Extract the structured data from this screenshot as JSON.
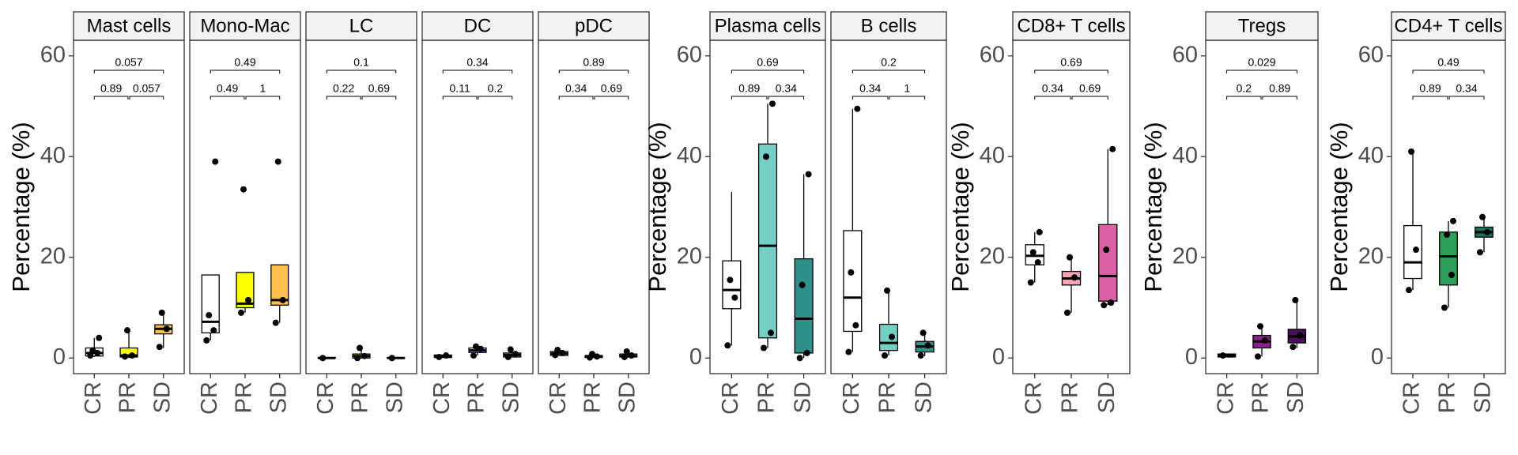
{
  "chart_data": {
    "type": "box",
    "ylabel": "Percentage (%)",
    "categories": [
      "CR",
      "PR",
      "SD"
    ],
    "ylim": [
      -3.1,
      63.1
    ],
    "yticks": [
      0,
      20,
      40,
      60
    ],
    "groups": [
      {
        "panels": [
          {
            "title": "Mast cells",
            "p_values": [
              0.89,
              0.057,
              0.057
            ],
            "boxes": [
              {
                "color": "#ffffff",
                "min": 0.2,
                "q1": 0.4,
                "median": 1,
                "q3": 2,
                "max": 4,
                "points": [
                  0.5,
                  1,
                  1.5,
                  4
                ]
              },
              {
                "color": "#ffff00",
                "min": 0,
                "q1": 0.2,
                "median": 0.5,
                "q3": 2,
                "max": 5.5,
                "points": [
                  0.3,
                  0.5,
                  5.5
                ]
              },
              {
                "color": "#ffc04d",
                "min": 2,
                "q1": 4.8,
                "median": 5.8,
                "q3": 6.6,
                "max": 9,
                "points": [
                  2.2,
                  5.8,
                  9
                ]
              }
            ]
          },
          {
            "title": "Mono-Mac",
            "p_values": [
              0.49,
              1,
              0.49
            ],
            "boxes": [
              {
                "color": "#ffffff",
                "min": 3.5,
                "q1": 5,
                "median": 7.2,
                "q3": 16.5,
                "max": 16.5,
                "points": [
                  3.5,
                  5.5,
                  8.5,
                  39
                ]
              },
              {
                "color": "#ffff00",
                "min": 9,
                "q1": 10,
                "median": 10.8,
                "q3": 17,
                "max": 17,
                "points": [
                  9,
                  11.5,
                  33.5
                ]
              },
              {
                "color": "#ffc04d",
                "min": 7,
                "q1": 10.5,
                "median": 11.5,
                "q3": 18.5,
                "max": 18.5,
                "points": [
                  7,
                  11.5,
                  39
                ]
              }
            ]
          },
          {
            "title": "LC",
            "p_values": [
              0.22,
              0.69,
              0.1
            ],
            "boxes": [
              {
                "color": "#ffffff",
                "min": 0,
                "q1": 0,
                "median": 0,
                "q3": 0.1,
                "max": 0.1,
                "points": [
                  0
                ]
              },
              {
                "color": "#ffff00",
                "min": 0,
                "q1": 0,
                "median": 0.4,
                "q3": 0.8,
                "max": 2,
                "points": [
                  0,
                  0.4,
                  2
                ]
              },
              {
                "color": "#ffc04d",
                "min": 0,
                "q1": 0,
                "median": 0,
                "q3": 0.1,
                "max": 0.1,
                "points": [
                  0
                ]
              }
            ]
          },
          {
            "title": "DC",
            "p_values": [
              0.11,
              0.2,
              0.34
            ],
            "boxes": [
              {
                "color": "#ffffff",
                "min": 0.1,
                "q1": 0.1,
                "median": 0.3,
                "q3": 0.6,
                "max": 0.6,
                "points": [
                  0.2,
                  0.5
                ]
              },
              {
                "color": "#ffff00",
                "min": 0.5,
                "q1": 1.1,
                "median": 1.5,
                "q3": 2,
                "max": 2.5,
                "points": [
                  0.5,
                  1.8,
                  2.3
                ]
              },
              {
                "color": "#ffc04d",
                "min": 0.2,
                "q1": 0.2,
                "median": 0.6,
                "q3": 1,
                "max": 1.7,
                "points": [
                  0.2,
                  0.8,
                  1.7
                ]
              }
            ]
          },
          {
            "title": "pDC",
            "p_values": [
              0.34,
              0.69,
              0.89
            ],
            "boxes": [
              {
                "color": "#ffffff",
                "min": 0.5,
                "q1": 0.5,
                "median": 0.9,
                "q3": 1.3,
                "max": 1.6,
                "points": [
                  0.6,
                  1,
                  1.6
                ]
              },
              {
                "color": "#ffff00",
                "min": 0.1,
                "q1": 0.1,
                "median": 0.3,
                "q3": 0.5,
                "max": 0.8,
                "points": [
                  0.1,
                  0.3,
                  0.8
                ]
              },
              {
                "color": "#ffc04d",
                "min": 0.2,
                "q1": 0.2,
                "median": 0.4,
                "q3": 0.8,
                "max": 1.3,
                "points": [
                  0.2,
                  0.5,
                  1.3
                ]
              }
            ]
          }
        ]
      },
      {
        "panels": [
          {
            "title": "Plasma cells",
            "p_values": [
              0.89,
              0.34,
              0.69
            ],
            "boxes": [
              {
                "color": "#ffffff",
                "min": 2.5,
                "q1": 9.8,
                "median": 13.5,
                "q3": 19.3,
                "max": 33,
                "points": [
                  2.5,
                  12,
                  15.5
                ]
              },
              {
                "color": "#76cfc5",
                "min": 2,
                "q1": 4,
                "median": 22.3,
                "q3": 42.5,
                "max": 50.5,
                "points": [
                  2,
                  5,
                  40,
                  50.5
                ]
              },
              {
                "color": "#2e9088",
                "min": 0,
                "q1": 1,
                "median": 7.8,
                "q3": 19.7,
                "max": 36.5,
                "points": [
                  0,
                  1,
                  14.5,
                  36.5
                ]
              }
            ]
          },
          {
            "title": "B cells",
            "p_values": [
              0.34,
              1,
              0.2
            ],
            "boxes": [
              {
                "color": "#ffffff",
                "min": 1.2,
                "q1": 5.3,
                "median": 12,
                "q3": 25.3,
                "max": 49.5,
                "points": [
                  1.2,
                  6.5,
                  17,
                  49.5
                ]
              },
              {
                "color": "#76cfc5",
                "min": 0.5,
                "q1": 1.5,
                "median": 3,
                "q3": 6.7,
                "max": 13.4,
                "points": [
                  0.5,
                  4.2,
                  13.4
                ]
              },
              {
                "color": "#2e9088",
                "min": 0.4,
                "q1": 1.2,
                "median": 2.3,
                "q3": 3.3,
                "max": 5,
                "points": [
                  0.5,
                  2.5,
                  5
                ]
              }
            ]
          }
        ]
      },
      {
        "panels": [
          {
            "title": "CD8+ T cells",
            "p_values": [
              0.34,
              0.69,
              0.69
            ],
            "boxes": [
              {
                "color": "#ffffff",
                "min": 15,
                "q1": 18.5,
                "median": 20.3,
                "q3": 22.5,
                "max": 25,
                "points": [
                  15,
                  19,
                  21,
                  25
                ]
              },
              {
                "color": "#f4a6b5",
                "min": 9,
                "q1": 14.5,
                "median": 15.8,
                "q3": 17.2,
                "max": 20,
                "points": [
                  9,
                  16,
                  20
                ]
              },
              {
                "color": "#dd5fa4",
                "min": 10.5,
                "q1": 11.3,
                "median": 16.3,
                "q3": 26.5,
                "max": 41.5,
                "points": [
                  10.5,
                  11,
                  21.5,
                  41.5
                ]
              }
            ]
          }
        ]
      },
      {
        "panels": [
          {
            "title": "Tregs",
            "p_values": [
              0.2,
              0.89,
              0.029
            ],
            "boxes": [
              {
                "color": "#ffffff",
                "min": 0.2,
                "q1": 0.2,
                "median": 0.5,
                "q3": 0.8,
                "max": 0.8,
                "points": [
                  0.5
                ]
              },
              {
                "color": "#8b1f8b",
                "min": 0.3,
                "q1": 2,
                "median": 3.3,
                "q3": 4.5,
                "max": 6.3,
                "points": [
                  0.3,
                  3.5,
                  6.3
                ]
              },
              {
                "color": "#4a0d5e",
                "min": 2,
                "q1": 3,
                "median": 4.3,
                "q3": 5.7,
                "max": 11.5,
                "points": [
                  2.2,
                  4.5,
                  11.5
                ]
              }
            ]
          }
        ]
      },
      {
        "panels": [
          {
            "title": "CD4+ T cells",
            "p_values": [
              0.89,
              0.34,
              0.49
            ],
            "boxes": [
              {
                "color": "#ffffff",
                "min": 13.5,
                "q1": 15.8,
                "median": 19,
                "q3": 26.3,
                "max": 41,
                "points": [
                  13.5,
                  21.5,
                  41
                ]
              },
              {
                "color": "#2e9e5a",
                "min": 10,
                "q1": 14.5,
                "median": 20.2,
                "q3": 25,
                "max": 27.2,
                "points": [
                  10,
                  16.5,
                  24.5,
                  27.2
                ]
              },
              {
                "color": "#1f6f5a",
                "min": 21,
                "q1": 24,
                "median": 25,
                "q3": 26,
                "max": 28,
                "points": [
                  21,
                  25,
                  28
                ]
              }
            ]
          }
        ]
      }
    ]
  }
}
